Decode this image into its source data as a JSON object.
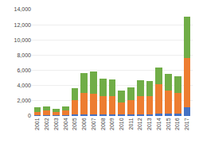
{
  "chart_data": {
    "type": "bar",
    "stacked": true,
    "categories": [
      "2001",
      "2002",
      "2003",
      "2004",
      "2005",
      "2006",
      "2007",
      "2008",
      "2009",
      "2010",
      "2011",
      "2012",
      "2013",
      "2014",
      "2015",
      "2016",
      "2017"
    ],
    "series": [
      {
        "color": "#4472c4",
        "values": [
          80,
          120,
          90,
          110,
          180,
          220,
          220,
          190,
          190,
          170,
          200,
          220,
          220,
          350,
          300,
          280,
          1100
        ]
      },
      {
        "color": "#ed7d31",
        "values": [
          480,
          580,
          420,
          580,
          1900,
          2800,
          2700,
          2400,
          2400,
          1600,
          1900,
          2400,
          2400,
          3800,
          3000,
          2800,
          6500
        ]
      },
      {
        "color": "#70ad47",
        "values": [
          600,
          600,
          450,
          580,
          1600,
          2600,
          2900,
          2300,
          2200,
          1600,
          1700,
          2100,
          2000,
          2200,
          2200,
          2100,
          5500
        ]
      }
    ],
    "ylim": [
      0,
      14000
    ],
    "yticks": [
      0,
      {
        "value": 2000,
        "label": "2,000"
      },
      {
        "value": 4000,
        "label": "4,000"
      },
      {
        "value": 6000,
        "label": "6,000"
      },
      {
        "value": 8000,
        "label": "8,000"
      },
      {
        "value": 10000,
        "label": "10,000"
      },
      {
        "value": 12000,
        "label": "12,000"
      },
      {
        "value": 14000,
        "label": "14,000"
      }
    ],
    "grid": true
  }
}
